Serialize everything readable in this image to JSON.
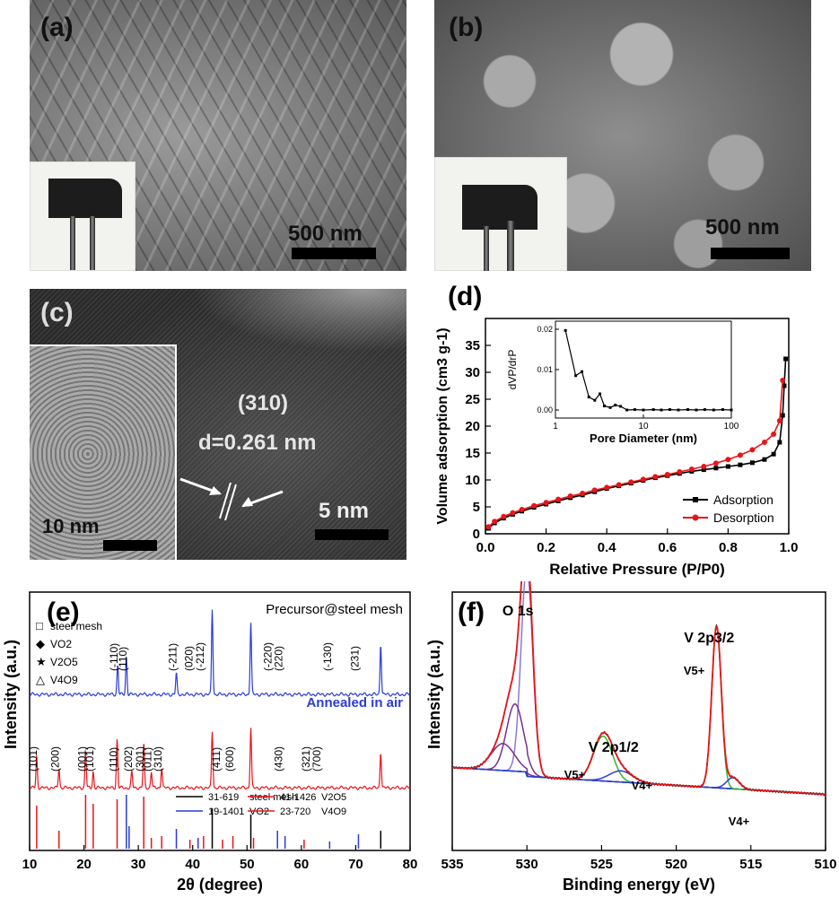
{
  "panels": {
    "a": {
      "label": "(a)",
      "scale": "500 nm"
    },
    "b": {
      "label": "(b)",
      "scale": "500 nm"
    },
    "c": {
      "label": "(c)",
      "plane": "(310)",
      "dspacing": "d=0.261 nm",
      "scale_main": "5 nm",
      "scale_inset": "10 nm"
    },
    "d": {
      "label": "(d)"
    },
    "e": {
      "label": "(e)"
    },
    "f": {
      "label": "(f)"
    }
  },
  "chart_data": [
    {
      "panel": "d",
      "type": "line",
      "xlabel": "Relative Pressure (P/P0)",
      "ylabel": "Volume adsorption (cm3 g-1)",
      "xlim": [
        0.0,
        1.0
      ],
      "ylim": [
        0,
        40
      ],
      "xticks": [
        "0.0",
        "0.2",
        "0.4",
        "0.6",
        "0.8",
        "1.0"
      ],
      "yticks": [
        "0",
        "5",
        "10",
        "15",
        "20",
        "25",
        "30",
        "35"
      ],
      "legend": "bottom-right",
      "series": [
        {
          "name": "Adsorption",
          "color": "#000000",
          "x": [
            0.01,
            0.03,
            0.06,
            0.09,
            0.12,
            0.16,
            0.2,
            0.24,
            0.28,
            0.32,
            0.36,
            0.4,
            0.44,
            0.48,
            0.52,
            0.56,
            0.6,
            0.64,
            0.68,
            0.72,
            0.76,
            0.8,
            0.84,
            0.88,
            0.92,
            0.95,
            0.97,
            0.98,
            0.985,
            0.99
          ],
          "y": [
            1.0,
            2.0,
            2.9,
            3.6,
            4.2,
            4.9,
            5.5,
            6.1,
            6.7,
            7.2,
            7.8,
            8.4,
            8.9,
            9.4,
            9.9,
            10.4,
            10.8,
            11.2,
            11.6,
            11.9,
            12.2,
            12.5,
            12.8,
            13.2,
            13.8,
            14.8,
            17.0,
            22.0,
            27.5,
            32.5
          ]
        },
        {
          "name": "Desorption",
          "color": "#e8151b",
          "x": [
            0.01,
            0.03,
            0.06,
            0.09,
            0.12,
            0.16,
            0.2,
            0.24,
            0.28,
            0.32,
            0.36,
            0.4,
            0.44,
            0.48,
            0.52,
            0.56,
            0.6,
            0.64,
            0.68,
            0.72,
            0.76,
            0.8,
            0.84,
            0.88,
            0.92,
            0.95,
            0.97,
            0.98
          ],
          "y": [
            1.3,
            2.3,
            3.2,
            3.9,
            4.5,
            5.2,
            5.8,
            6.4,
            7.0,
            7.5,
            8.1,
            8.6,
            9.1,
            9.6,
            10.1,
            10.6,
            11.0,
            11.5,
            12.0,
            12.5,
            13.1,
            13.8,
            14.6,
            15.6,
            17.0,
            18.5,
            21.0,
            28.5
          ]
        }
      ],
      "inset": {
        "xlabel": "Pore Diameter (nm)",
        "ylabel": "dVP/drP",
        "xscale": "log",
        "xticks": [
          "1",
          "10",
          "100"
        ],
        "yticks": [
          "0.00",
          "0.01",
          "0.02"
        ],
        "ylim": [
          -0.002,
          0.022
        ],
        "x": [
          1.3,
          1.7,
          2.0,
          2.4,
          2.8,
          3.2,
          3.6,
          4.2,
          4.8,
          5.5,
          6.5,
          8,
          10,
          13,
          16,
          20,
          25,
          32,
          40,
          50,
          63,
          80,
          100
        ],
        "y": [
          0.0197,
          0.0085,
          0.0095,
          0.0032,
          0.0024,
          0.004,
          0.001,
          0.0006,
          0.0012,
          0.0009,
          0.0,
          0.0001,
          0.0,
          0.0001,
          0.0,
          0.0001,
          0.0,
          0.0001,
          0.0,
          0.0001,
          0.0,
          0.0001,
          0.0
        ]
      }
    },
    {
      "panel": "e",
      "type": "line",
      "xlabel": "2θ (degree)",
      "ylabel": "Intensity (a.u.)",
      "xlim": [
        10,
        80
      ],
      "xticks": [
        "10",
        "20",
        "30",
        "40",
        "50",
        "60",
        "70",
        "80"
      ],
      "series": [
        {
          "name": "Precursor@steel mesh",
          "color": "#2b3bd8",
          "peaks": [
            [
              26.2,
              0.35
            ],
            [
              27.8,
              0.45
            ],
            [
              37.0,
              0.25
            ],
            [
              43.6,
              1.0
            ],
            [
              50.7,
              0.85
            ],
            [
              74.6,
              0.6
            ]
          ]
        },
        {
          "name": "Annealed in air",
          "color": "#e8151b",
          "peaks": [
            [
              11.3,
              0.4
            ],
            [
              15.4,
              0.25
            ],
            [
              20.3,
              0.45
            ],
            [
              21.7,
              0.2
            ],
            [
              26.1,
              0.6
            ],
            [
              28.8,
              0.2
            ],
            [
              31.0,
              0.55
            ],
            [
              32.4,
              0.2
            ],
            [
              34.3,
              0.25
            ],
            [
              43.6,
              0.7
            ],
            [
              50.7,
              0.75
            ],
            [
              74.6,
              0.45
            ]
          ]
        }
      ],
      "legend_markers": [
        "steel mesh",
        "VO2",
        "V2O5",
        "V4O9"
      ],
      "peak_labels_top": [
        "(-110)",
        "(110)",
        "(-211)",
        "(020)",
        "(-212)",
        "(-220)",
        "(220)",
        "(-130)",
        "(231)"
      ],
      "peak_labels_bottom": [
        "(101)",
        "(200)",
        "(001)",
        "(101)",
        "(110)",
        "(202)",
        "(301)",
        "(011)",
        "(310)",
        "(411)",
        "(600)",
        "(430)",
        "(321)",
        "(700)"
      ],
      "reference_legend": [
        {
          "code": "31-619",
          "name": "steel mesh",
          "color": "#000000"
        },
        {
          "code": "19-1401",
          "name": "VO2",
          "color": "#2b3bd8"
        },
        {
          "code": "41-1426",
          "name": "V2O5",
          "color": "#e8151b"
        },
        {
          "code": "23-720",
          "name": "V4O9",
          "color": "#e8151b"
        }
      ]
    },
    {
      "panel": "f",
      "type": "line",
      "xlabel": "Binding energy (eV)",
      "ylabel": "Intensity (a.u.)",
      "xlim": [
        535,
        510
      ],
      "xticks": [
        "535",
        "530",
        "525",
        "520",
        "515",
        "510"
      ],
      "annotations": [
        "O 1s",
        "V 2p1/2",
        "V 2p3/2",
        "V5+",
        "V4+",
        "V5+",
        "V4+"
      ],
      "peaks": [
        {
          "name": "O 1s main",
          "color": "#8a78d8",
          "center": 530.0,
          "height": 0.92,
          "width": 0.55
        },
        {
          "name": "O 1s shoulder",
          "color": "#7a2e8e",
          "center": 530.8,
          "height": 0.3,
          "width": 0.8
        },
        {
          "name": "O 1s shoulder 2",
          "color": "#7a2e8e",
          "center": 531.6,
          "height": 0.12,
          "width": 1.1
        },
        {
          "name": "V5+ 2p1/2",
          "color": "#2fb82f",
          "center": 524.9,
          "height": 0.2,
          "width": 0.9
        },
        {
          "name": "V4+ 2p1/2",
          "color": "#2b3bd8",
          "center": 523.7,
          "height": 0.05,
          "width": 1.1
        },
        {
          "name": "V5+ 2p3/2",
          "color": "#2fb82f",
          "center": 517.3,
          "height": 0.72,
          "width": 0.45
        },
        {
          "name": "V4+ 2p3/2",
          "color": "#2b3bd8",
          "center": 516.2,
          "height": 0.05,
          "width": 0.6
        }
      ]
    }
  ]
}
